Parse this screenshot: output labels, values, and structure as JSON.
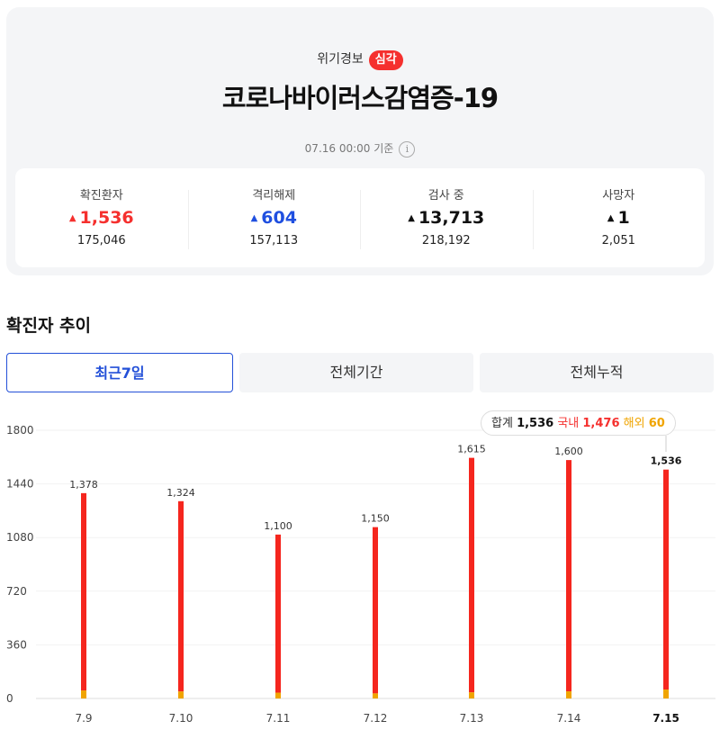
{
  "summary": {
    "alert_label": "위기경보",
    "alert_level": "심각",
    "disease_title": "코로나바이러스감염증-19",
    "timestamp": "07.16 00:00 기준",
    "info_icon": "i",
    "colors": {
      "increase": "#f5302e",
      "decrease": "#1f4fe0",
      "neutral": "#111111"
    },
    "stats": [
      {
        "label": "확진환자",
        "change": "1,536",
        "total": "175,046"
      },
      {
        "label": "격리해제",
        "change": "604",
        "total": "157,113"
      },
      {
        "label": "검사 중",
        "change": "13,713",
        "total": "218,192"
      },
      {
        "label": "사망자",
        "change": "1",
        "total": "2,051"
      }
    ]
  },
  "trend": {
    "title": "확진자 추이",
    "tabs": [
      "최근7일",
      "전체기간",
      "전체누적"
    ],
    "active_tab": "최근7일",
    "tooltip": {
      "total_label": "합계",
      "total": "1,536",
      "domestic_label": "국내",
      "domestic": "1,476",
      "overseas_label": "해외",
      "overseas": "60"
    }
  },
  "chart_data": {
    "type": "bar",
    "categories": [
      "7.9",
      "7.10",
      "7.11",
      "7.12",
      "7.13",
      "7.14",
      "7.15"
    ],
    "series": [
      {
        "name": "국내",
        "values": [
          1324,
          1277,
          1061,
          1116,
          1574,
          1552,
          1476
        ],
        "color": "#f5261e"
      },
      {
        "name": "해외",
        "values": [
          54,
          47,
          39,
          34,
          41,
          48,
          60
        ],
        "color": "#f0a400"
      }
    ],
    "totals": [
      1378,
      1324,
      1100,
      1150,
      1615,
      1600,
      1536
    ],
    "data_labels": [
      "1,378",
      "1,324",
      "1,100",
      "1,150",
      "1,615",
      "1,600",
      "1,536"
    ],
    "y_ticks": [
      0,
      360,
      720,
      1080,
      1440,
      1800
    ],
    "ylim": [
      0,
      1800
    ],
    "highlight_category": "7.15",
    "grid": true
  }
}
